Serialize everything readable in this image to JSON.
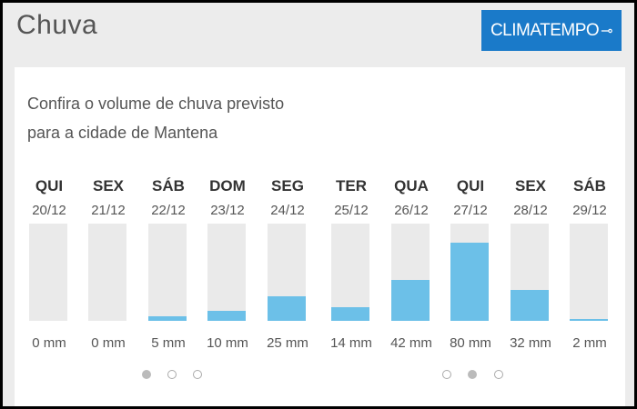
{
  "header": {
    "title": "Chuva",
    "brand_label": "CLIMATEMPO",
    "brand_icon": "arrow-right-icon",
    "brand_color": "#1a7ac9"
  },
  "intro": {
    "line1": "Confira o volume de chuva previsto",
    "line2": "para a cidade de Mantena"
  },
  "colors": {
    "bar_fill": "#6cc0e8",
    "bar_track": "#eaeaea"
  },
  "chart_data": {
    "type": "bar",
    "categories": [
      "QUI",
      "SEX",
      "SÁB",
      "DOM",
      "SEG",
      "TER",
      "QUA",
      "QUI",
      "SEX",
      "SÁB"
    ],
    "dates": [
      "20/12",
      "21/12",
      "22/12",
      "23/12",
      "24/12",
      "25/12",
      "26/12",
      "27/12",
      "28/12",
      "29/12"
    ],
    "values": [
      0,
      0,
      5,
      10,
      25,
      14,
      42,
      80,
      32,
      2
    ],
    "value_labels": [
      "0 mm",
      "0 mm",
      "5 mm",
      "10 mm",
      "25 mm",
      "14 mm",
      "42 mm",
      "80 mm",
      "32 mm",
      "2 mm"
    ],
    "ylim": [
      0,
      100
    ]
  },
  "pagination": {
    "left": {
      "count": 3,
      "active": 0
    },
    "right": {
      "count": 3,
      "active": 1
    }
  }
}
